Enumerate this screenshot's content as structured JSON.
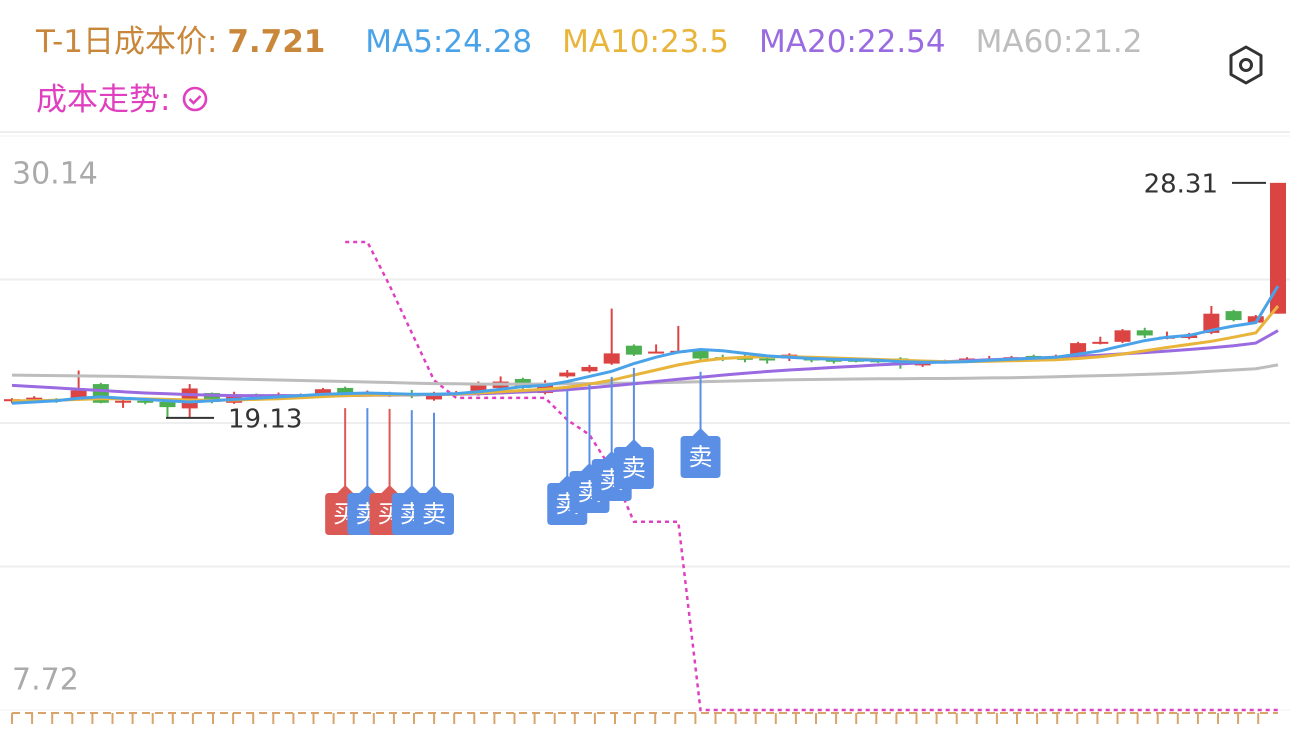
{
  "header": {
    "cost_label": "T-1日成本价:",
    "cost_value": 7.721,
    "trend_label": "成本走势:"
  },
  "chart_data": {
    "type": "candlestick",
    "ylim": [
      7.72,
      30.14
    ],
    "yticks": [
      30.14,
      7.72
    ],
    "grid": true,
    "up_color": "#dc4444",
    "down_color": "#4caf50",
    "open": [
      19.78,
      19.8,
      19.85,
      19.85,
      20.45,
      19.76,
      19.8,
      19.75,
      19.5,
      20.1,
      19.72,
      20.05,
      19.95,
      20.0,
      20.05,
      20.3,
      20.05,
      20.1,
      20.05,
      19.85,
      20.05,
      20.05,
      20.3,
      20.65,
      20.1,
      20.75,
      20.95,
      21.25,
      21.95,
      21.7,
      21.7,
      21.75,
      21.5,
      21.5,
      21.45,
      21.45,
      21.45,
      21.4,
      21.4,
      21.38,
      21.45,
      21.18,
      21.3,
      21.35,
      21.4,
      21.45,
      21.55,
      21.5,
      21.55,
      22.05,
      22.1,
      22.55,
      22.25,
      22.25,
      22.45,
      23.3,
      22.85,
      23.2
    ],
    "close": [
      19.86,
      19.92,
      19.78,
      20.2,
      19.72,
      19.8,
      19.72,
      19.55,
      20.28,
      19.75,
      20.05,
      19.95,
      20.05,
      20.02,
      20.25,
      20.05,
      20.1,
      20.02,
      19.98,
      20.1,
      20.12,
      20.45,
      20.55,
      20.3,
      20.5,
      20.9,
      21.12,
      21.65,
      21.6,
      21.72,
      21.75,
      21.45,
      21.42,
      21.4,
      21.38,
      21.6,
      21.4,
      21.35,
      21.35,
      21.34,
      21.2,
      21.3,
      21.35,
      21.45,
      21.45,
      21.5,
      21.45,
      21.55,
      22.05,
      22.1,
      22.55,
      22.35,
      22.3,
      22.35,
      23.2,
      22.95,
      23.1,
      28.31
    ],
    "high": [
      19.9,
      19.98,
      19.9,
      20.98,
      20.5,
      19.85,
      19.86,
      19.78,
      20.45,
      20.12,
      20.15,
      20.08,
      20.12,
      20.08,
      20.3,
      20.35,
      20.2,
      20.15,
      20.22,
      20.15,
      20.18,
      20.55,
      20.75,
      20.7,
      20.6,
      21.0,
      21.2,
      23.4,
      22.0,
      22.0,
      22.72,
      21.8,
      21.6,
      21.6,
      21.55,
      21.65,
      21.5,
      21.5,
      21.45,
      21.42,
      21.5,
      21.35,
      21.4,
      21.5,
      21.55,
      21.55,
      21.6,
      21.6,
      22.1,
      22.3,
      22.6,
      22.65,
      22.5,
      22.45,
      23.5,
      23.35,
      23.15,
      28.31
    ],
    "low": [
      19.7,
      19.74,
      19.72,
      19.8,
      19.7,
      19.52,
      19.66,
      19.13,
      19.13,
      19.7,
      19.68,
      19.9,
      19.9,
      19.95,
      20.0,
      19.98,
      19.98,
      19.95,
      19.9,
      19.8,
      20.0,
      20.0,
      20.25,
      20.25,
      20.05,
      20.7,
      20.9,
      21.2,
      21.55,
      21.65,
      21.65,
      21.4,
      21.35,
      21.3,
      21.25,
      21.35,
      21.3,
      21.25,
      21.3,
      21.28,
      21.05,
      21.12,
      21.25,
      21.3,
      21.35,
      21.4,
      21.4,
      21.45,
      21.5,
      22.0,
      22.05,
      22.25,
      22.2,
      22.2,
      22.4,
      22.9,
      22.8,
      23.2
    ],
    "series": [
      {
        "name": "MA5",
        "color": "#4aa3e8",
        "values": [
          19.7,
          19.75,
          19.8,
          19.9,
          19.95,
          19.9,
          19.85,
          19.8,
          19.75,
          19.8,
          19.85,
          19.9,
          19.95,
          20.0,
          20.05,
          20.08,
          20.1,
          20.08,
          20.05,
          20.05,
          20.08,
          20.15,
          20.25,
          20.35,
          20.4,
          20.55,
          20.75,
          20.95,
          21.25,
          21.5,
          21.7,
          21.8,
          21.75,
          21.65,
          21.55,
          21.5,
          21.45,
          21.42,
          21.4,
          21.38,
          21.33,
          21.3,
          21.3,
          21.33,
          21.38,
          21.42,
          21.46,
          21.5,
          21.62,
          21.75,
          21.95,
          22.15,
          22.28,
          22.35,
          22.55,
          22.72,
          22.85,
          24.28
        ]
      },
      {
        "name": "MA10",
        "color": "#e8b43a",
        "values": [
          19.8,
          19.8,
          19.82,
          19.85,
          19.88,
          19.88,
          19.87,
          19.85,
          19.83,
          19.82,
          19.83,
          19.85,
          19.88,
          19.92,
          19.96,
          20.0,
          20.02,
          20.03,
          20.04,
          20.05,
          20.06,
          20.1,
          20.15,
          20.2,
          20.25,
          20.33,
          20.45,
          20.6,
          20.8,
          21.0,
          21.2,
          21.35,
          21.45,
          21.5,
          21.52,
          21.52,
          21.5,
          21.47,
          21.44,
          21.41,
          21.38,
          21.35,
          21.33,
          21.33,
          21.34,
          21.36,
          21.38,
          21.4,
          21.45,
          21.52,
          21.62,
          21.75,
          21.88,
          22.0,
          22.12,
          22.28,
          22.45,
          23.5
        ]
      },
      {
        "name": "MA20",
        "color": "#9a6be0",
        "values": [
          20.4,
          20.35,
          20.3,
          20.25,
          20.2,
          20.15,
          20.1,
          20.07,
          20.04,
          20.02,
          20.0,
          20.0,
          20.0,
          20.0,
          20.0,
          20.0,
          20.01,
          20.02,
          20.03,
          20.04,
          20.05,
          20.07,
          20.1,
          20.14,
          20.18,
          20.23,
          20.3,
          20.38,
          20.46,
          20.55,
          20.64,
          20.72,
          20.8,
          20.87,
          20.94,
          21.0,
          21.05,
          21.1,
          21.15,
          21.2,
          21.24,
          21.28,
          21.32,
          21.36,
          21.4,
          21.43,
          21.46,
          21.5,
          21.54,
          21.58,
          21.63,
          21.68,
          21.74,
          21.8,
          21.87,
          21.95,
          22.05,
          22.54
        ]
      },
      {
        "name": "MA60",
        "color": "#bdbdbd",
        "values": [
          20.8,
          20.79,
          20.78,
          20.77,
          20.76,
          20.75,
          20.73,
          20.71,
          20.69,
          20.67,
          20.65,
          20.63,
          20.61,
          20.59,
          20.57,
          20.55,
          20.53,
          20.51,
          20.49,
          20.47,
          20.46,
          20.45,
          20.45,
          20.45,
          20.45,
          20.46,
          20.47,
          20.48,
          20.49,
          20.5,
          20.52,
          20.54,
          20.56,
          20.58,
          20.6,
          20.62,
          20.63,
          20.64,
          20.65,
          20.66,
          20.66,
          20.67,
          20.67,
          20.68,
          20.69,
          20.7,
          20.72,
          20.74,
          20.76,
          20.78,
          20.8,
          20.83,
          20.86,
          20.9,
          20.95,
          21.0,
          21.05,
          21.2
        ]
      }
    ],
    "cost_line": {
      "color": "#e040c0",
      "values": [
        null,
        null,
        null,
        null,
        null,
        null,
        null,
        null,
        null,
        null,
        null,
        null,
        null,
        null,
        null,
        26.0,
        26.0,
        24.3,
        22.45,
        20.6,
        19.91,
        19.91,
        19.91,
        19.91,
        19.91,
        19.05,
        18.47,
        17.1,
        15.07,
        15.07,
        15.07,
        7.72,
        7.72,
        7.72,
        7.72,
        7.72,
        7.72,
        7.72,
        7.72,
        7.72,
        7.72,
        7.72,
        7.72,
        7.72,
        7.72,
        7.72,
        7.72,
        7.72,
        7.72,
        7.72,
        7.72,
        7.72,
        7.72,
        7.72,
        7.72,
        7.72,
        7.72,
        7.72
      ]
    },
    "signals": [
      null,
      null,
      null,
      null,
      null,
      null,
      null,
      null,
      null,
      null,
      null,
      null,
      null,
      null,
      null,
      "买",
      "卖",
      "买",
      "卖",
      "卖",
      null,
      null,
      null,
      null,
      null,
      "卖",
      "卖",
      "卖",
      "卖",
      null,
      null,
      "卖",
      null,
      null,
      null,
      null,
      null,
      null,
      null,
      null,
      null,
      null,
      null,
      null,
      null,
      null,
      null,
      null,
      null,
      null,
      null,
      null,
      null,
      null,
      null,
      null,
      null,
      null
    ],
    "buy_label": "买",
    "buy_color": "#dc5a55",
    "sell_color": "#5b8fe6",
    "high_mark": 28.31,
    "low_mark": 19.13
  }
}
